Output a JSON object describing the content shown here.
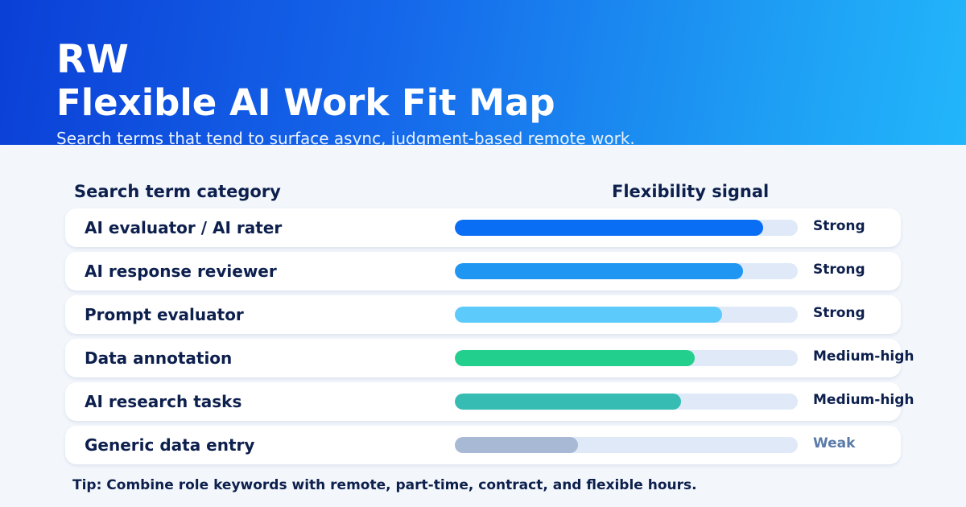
{
  "header": {
    "brand": "RW",
    "title": "Flexible AI Work Fit Map",
    "subtitle": "Search terms that tend to surface async, judgment-based remote work."
  },
  "columns": {
    "left": "Search term category",
    "right": "Flexibility signal"
  },
  "chart_data": {
    "type": "bar",
    "orientation": "horizontal",
    "title": "",
    "categories": [
      "AI evaluator / AI rater",
      "AI response reviewer",
      "Prompt evaluator",
      "Data annotation",
      "AI research tasks",
      "Generic data entry"
    ],
    "values": [
      0.9,
      0.84,
      0.78,
      0.7,
      0.66,
      0.36
    ],
    "value_scale": "fraction of full bar",
    "signals": [
      "Strong",
      "Strong",
      "Strong",
      "Medium-high",
      "Medium-high",
      "Weak"
    ],
    "colors": [
      "#0a6ef5",
      "#1f96f2",
      "#5ccafa",
      "#23cf8c",
      "#37bcb3",
      "#a7b9d4"
    ],
    "track_color": "#dfe9f8",
    "grid": false
  },
  "footer": {
    "tip": "Tip: Combine role keywords with remote, part-time, contract, and flexible hours."
  }
}
